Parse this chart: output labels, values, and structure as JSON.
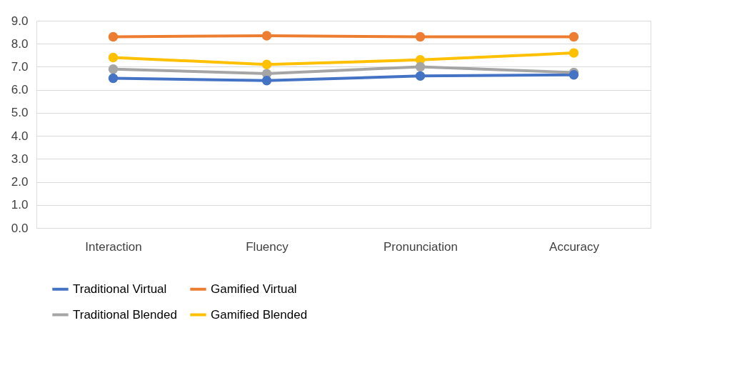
{
  "chart_data": {
    "type": "line",
    "categories": [
      "Interaction",
      "Fluency",
      "Pronunciation",
      "Accuracy"
    ],
    "series": [
      {
        "name": "Traditional Virtual",
        "color": "#4472c4",
        "values": [
          6.5,
          6.4,
          6.6,
          6.65
        ]
      },
      {
        "name": "Gamified Virtual",
        "color": "#ed7d31",
        "values": [
          8.3,
          8.35,
          8.3,
          8.3
        ]
      },
      {
        "name": "Traditional Blended",
        "color": "#a5a5a5",
        "values": [
          6.9,
          6.7,
          7.0,
          6.75
        ]
      },
      {
        "name": "Gamified Blended",
        "color": "#ffc000",
        "values": [
          7.4,
          7.1,
          7.3,
          7.6
        ]
      }
    ],
    "ylim": [
      0,
      9
    ],
    "yticks": [
      {
        "value": 0,
        "label": "0.0"
      },
      {
        "value": 1,
        "label": "1.0"
      },
      {
        "value": 2,
        "label": "2.0"
      },
      {
        "value": 3,
        "label": "3.0"
      },
      {
        "value": 4,
        "label": "4.0"
      },
      {
        "value": 5,
        "label": "5.0"
      },
      {
        "value": 6,
        "label": "6.0"
      },
      {
        "value": 7,
        "label": "7.0"
      },
      {
        "value": 8,
        "label": "8.0"
      },
      {
        "value": 9,
        "label": "9.0"
      }
    ],
    "grid": "y",
    "legend": "bottom",
    "marker": "circle",
    "line_style": "solid"
  }
}
